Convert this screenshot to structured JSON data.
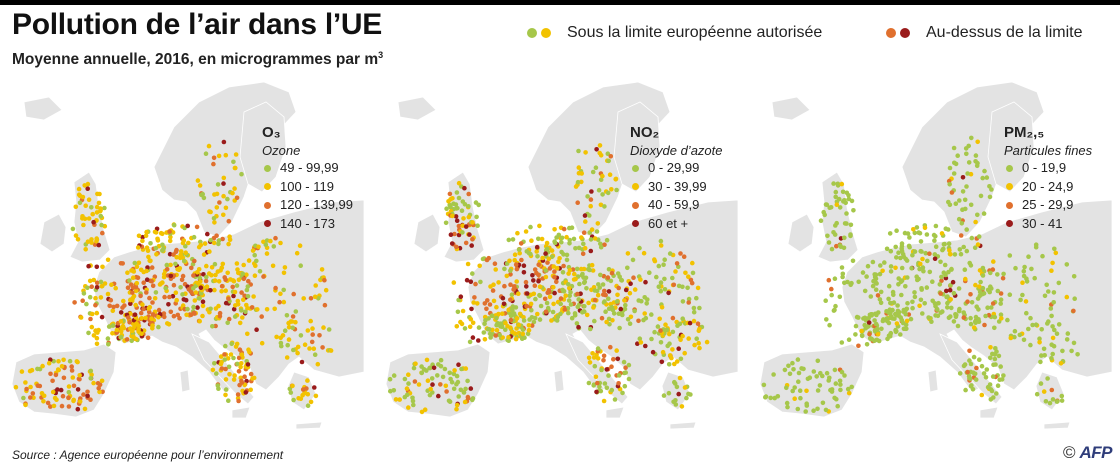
{
  "title": "Pollution de l’air dans l’UE",
  "subtitle": "Moyenne annuelle, 2016, en microgrammes par m",
  "subtitle_sup": "3",
  "legend": {
    "below": {
      "label": "Sous la limite européenne autorisée",
      "colors": [
        "#a6c74a",
        "#f2c200"
      ]
    },
    "above": {
      "label": "Au-dessus de la limite",
      "colors": [
        "#e0702e",
        "#9a1b1b"
      ]
    }
  },
  "colors": {
    "c1": "#a6c74a",
    "c2": "#f2c200",
    "c3": "#e0702e",
    "c4": "#9a1b1b",
    "land": "#e3e3e3",
    "sea": "#ffffff"
  },
  "panels": [
    {
      "key": "o3",
      "name": "O₃",
      "desc": "Ozone",
      "classes": [
        "49 - 99,99",
        "100 - 119",
        "120 - 139,99",
        "140 - 173"
      ],
      "mix": [
        0.22,
        0.52,
        0.19,
        0.07
      ]
    },
    {
      "key": "no2",
      "name": "NO₂",
      "desc": "Dioxyde d’azote",
      "classes": [
        "0 - 29,99",
        "30 - 39,99",
        "40 - 59,9",
        "60 et +"
      ],
      "mix": [
        0.52,
        0.3,
        0.12,
        0.06
      ]
    },
    {
      "key": "pm25",
      "name": "PM₂,₅",
      "desc": "Particules fines",
      "classes": [
        "0 - 19,9",
        "20 - 24,9",
        "25 - 29,9",
        "30 - 41"
      ],
      "mix": [
        0.84,
        0.09,
        0.05,
        0.02
      ]
    }
  ],
  "source": "Source : Agence européenne pour l’environnement",
  "credit": {
    "copyright": "©",
    "logo": "AFP"
  }
}
